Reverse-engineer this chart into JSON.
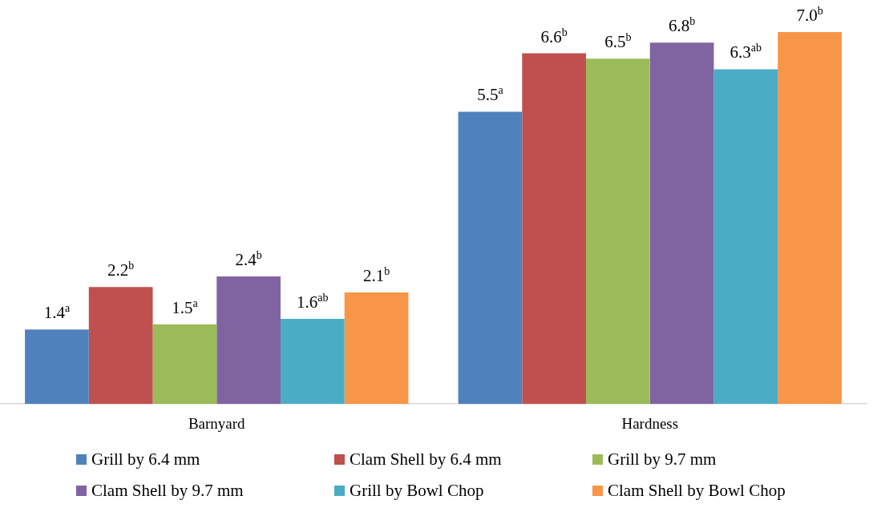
{
  "chart_data": {
    "type": "bar",
    "categories": [
      "Barnyard",
      "Hardness"
    ],
    "series": [
      {
        "name": "Grill by 6.4 mm",
        "color": "#4f81bd",
        "values": [
          1.4,
          5.5
        ],
        "value_labels": [
          "1.4$^{a}$",
          "5.5$^{a}$"
        ]
      },
      {
        "name": "Clam Shell by 6.4 mm",
        "color": "#c0504d",
        "values": [
          2.2,
          6.6
        ],
        "value_labels": [
          "2.2$^{b}$",
          "6.6$^{b}$"
        ]
      },
      {
        "name": "Grill by 9.7 mm",
        "color": "#9bbb59",
        "values": [
          1.5,
          6.5
        ],
        "value_labels": [
          "1.5$^{a}$",
          "6.5$^{b}$"
        ]
      },
      {
        "name": "Clam Shell by 9.7 mm",
        "color": "#8064a2",
        "values": [
          2.4,
          6.8
        ],
        "value_labels": [
          "2.4$^{b}$",
          "6.8$^{b}$"
        ]
      },
      {
        "name": "Grill by Bowl Chop",
        "color": "#4bacc6",
        "values": [
          1.6,
          6.3
        ],
        "value_labels": [
          "1.6$^{ab}$",
          "6.3$^{ab}$"
        ]
      },
      {
        "name": "Clam Shell by Bowl Chop",
        "color": "#f79646",
        "values": [
          2.1,
          7.0
        ],
        "value_labels": [
          "2.1$^{b}$",
          "7.0$^{b}$"
        ]
      }
    ],
    "ylim": [
      0,
      7.0
    ],
    "tick_labels": "x",
    "grid": false,
    "legend": "bottom"
  }
}
